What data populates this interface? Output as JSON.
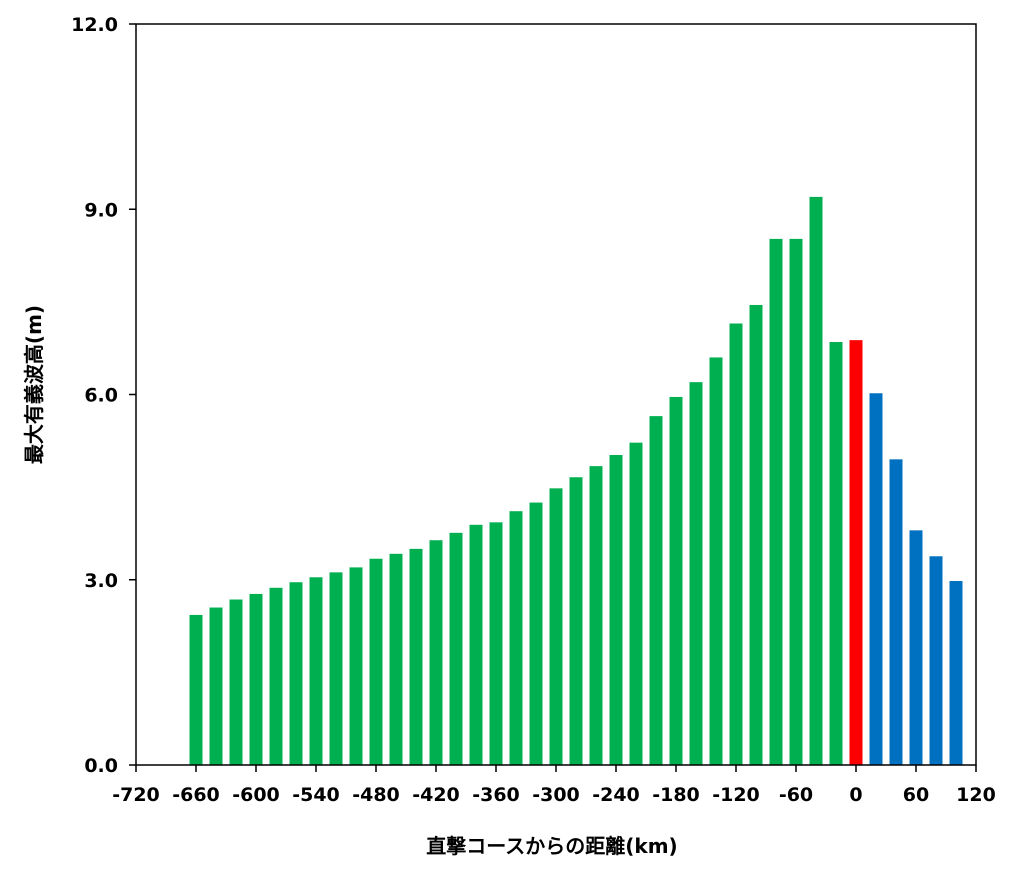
{
  "chart_data": {
    "type": "bar",
    "xlabel": "直撃コースからの距離(km)",
    "ylabel": "最大有義波高(m)",
    "xlim": [
      -720,
      120
    ],
    "ylim": [
      0,
      12
    ],
    "x_ticks": [
      -720,
      -660,
      -600,
      -540,
      -480,
      -420,
      -360,
      -300,
      -240,
      -180,
      -120,
      -60,
      0,
      60,
      120
    ],
    "y_ticks": [
      "0.0",
      "3.0",
      "6.0",
      "9.0",
      "12.0"
    ],
    "y_tick_values": [
      0,
      3,
      6,
      9,
      12
    ],
    "bar_width_km": 13,
    "grid": false,
    "legend": "none",
    "colors": {
      "left": "#00b050",
      "center": "#ff0000",
      "right": "#0070c0"
    },
    "points": [
      {
        "x": -660,
        "y": 2.43,
        "group": "left"
      },
      {
        "x": -640,
        "y": 2.55,
        "group": "left"
      },
      {
        "x": -620,
        "y": 2.68,
        "group": "left"
      },
      {
        "x": -600,
        "y": 2.77,
        "group": "left"
      },
      {
        "x": -580,
        "y": 2.87,
        "group": "left"
      },
      {
        "x": -560,
        "y": 2.96,
        "group": "left"
      },
      {
        "x": -540,
        "y": 3.04,
        "group": "left"
      },
      {
        "x": -520,
        "y": 3.12,
        "group": "left"
      },
      {
        "x": -500,
        "y": 3.2,
        "group": "left"
      },
      {
        "x": -480,
        "y": 3.34,
        "group": "left"
      },
      {
        "x": -460,
        "y": 3.42,
        "group": "left"
      },
      {
        "x": -440,
        "y": 3.5,
        "group": "left"
      },
      {
        "x": -420,
        "y": 3.64,
        "group": "left"
      },
      {
        "x": -400,
        "y": 3.76,
        "group": "left"
      },
      {
        "x": -380,
        "y": 3.89,
        "group": "left"
      },
      {
        "x": -360,
        "y": 3.93,
        "group": "left"
      },
      {
        "x": -340,
        "y": 4.11,
        "group": "left"
      },
      {
        "x": -320,
        "y": 4.25,
        "group": "left"
      },
      {
        "x": -300,
        "y": 4.48,
        "group": "left"
      },
      {
        "x": -280,
        "y": 4.66,
        "group": "left"
      },
      {
        "x": -260,
        "y": 4.84,
        "group": "left"
      },
      {
        "x": -240,
        "y": 5.02,
        "group": "left"
      },
      {
        "x": -220,
        "y": 5.22,
        "group": "left"
      },
      {
        "x": -200,
        "y": 5.65,
        "group": "left"
      },
      {
        "x": -180,
        "y": 5.96,
        "group": "left"
      },
      {
        "x": -160,
        "y": 6.2,
        "group": "left"
      },
      {
        "x": -140,
        "y": 6.6,
        "group": "left"
      },
      {
        "x": -120,
        "y": 7.15,
        "group": "left"
      },
      {
        "x": -100,
        "y": 7.45,
        "group": "left"
      },
      {
        "x": -80,
        "y": 8.52,
        "group": "left"
      },
      {
        "x": -60,
        "y": 8.52,
        "group": "left"
      },
      {
        "x": -40,
        "y": 9.2,
        "group": "left"
      },
      {
        "x": -20,
        "y": 6.85,
        "group": "left"
      },
      {
        "x": 0,
        "y": 6.88,
        "group": "center"
      },
      {
        "x": 20,
        "y": 6.02,
        "group": "right"
      },
      {
        "x": 40,
        "y": 4.95,
        "group": "right"
      },
      {
        "x": 60,
        "y": 3.8,
        "group": "right"
      },
      {
        "x": 80,
        "y": 3.38,
        "group": "right"
      },
      {
        "x": 100,
        "y": 2.98,
        "group": "right"
      }
    ]
  }
}
